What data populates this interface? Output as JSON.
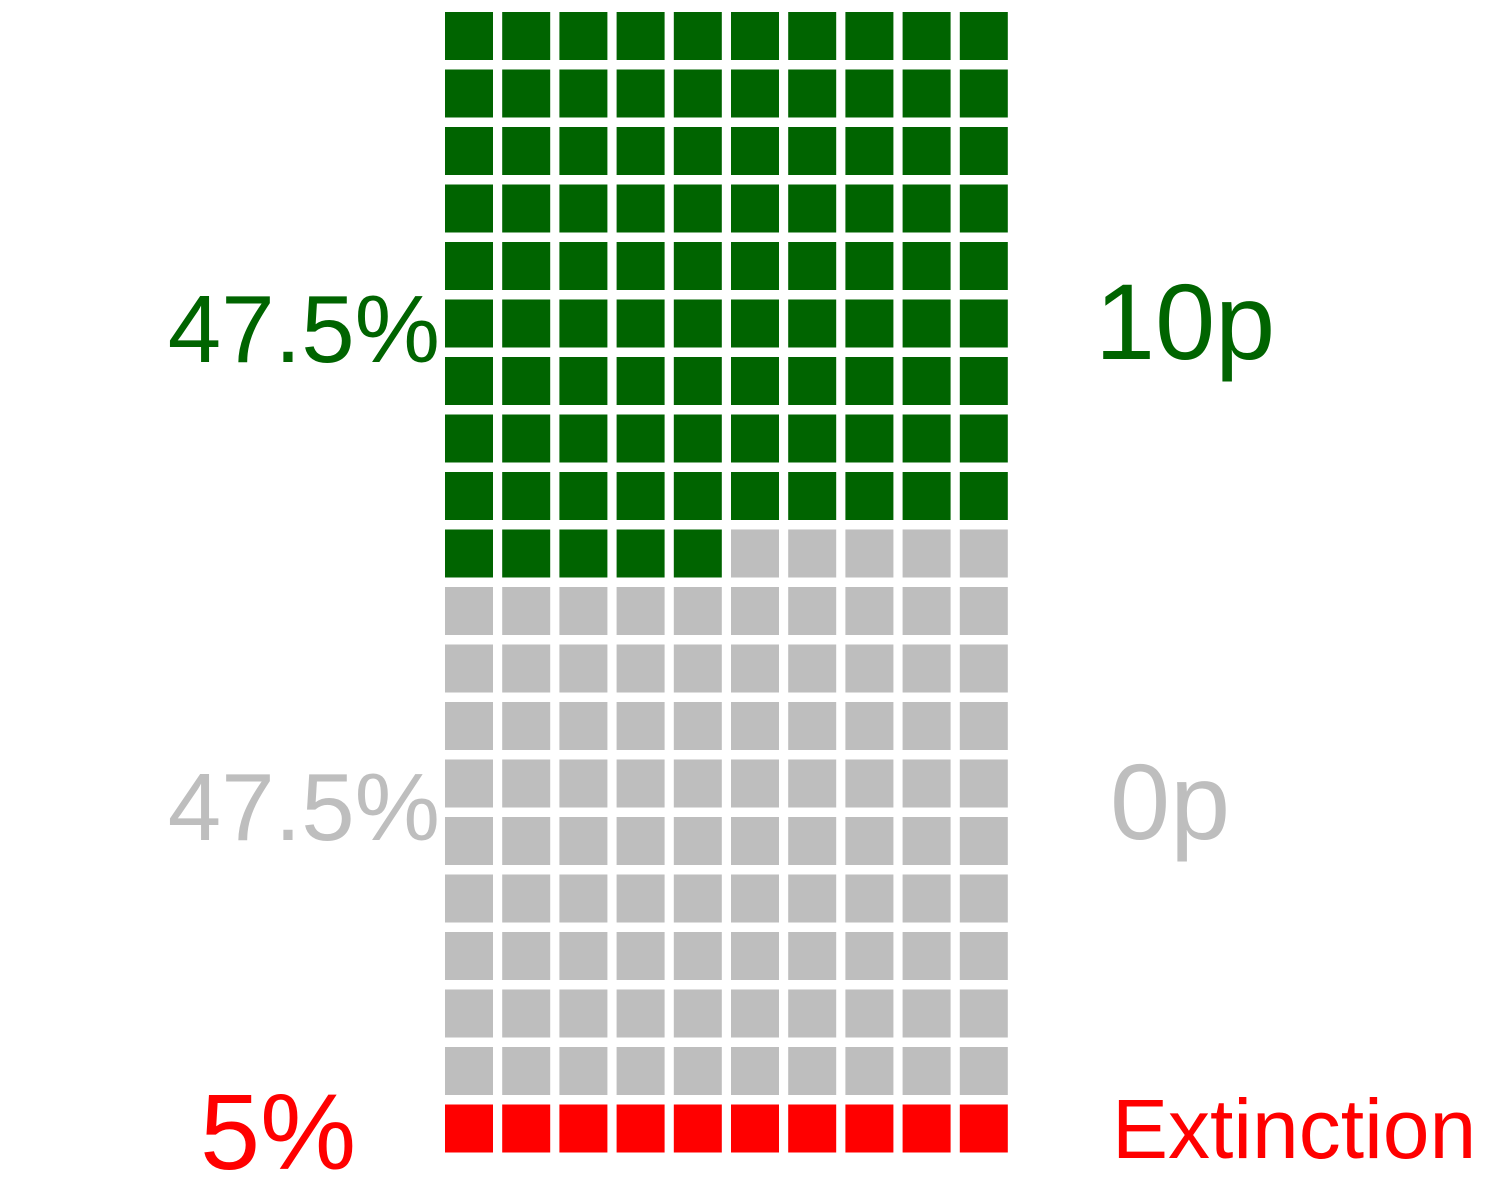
{
  "chart_data": {
    "type": "waffle",
    "grid": {
      "columns": 10,
      "rows": 20,
      "unit_percent": 0.5
    },
    "categories": [
      {
        "key": "green",
        "value_percent": 47.5,
        "percent_label": "47.5%",
        "name": "10p",
        "color": "#006400"
      },
      {
        "key": "gray",
        "value_percent": 47.5,
        "percent_label": "47.5%",
        "name": "0p",
        "color": "#BEBEBE"
      },
      {
        "key": "red",
        "value_percent": 5,
        "percent_label": "5%",
        "name": "Extinction",
        "color": "#FF0000"
      }
    ]
  }
}
